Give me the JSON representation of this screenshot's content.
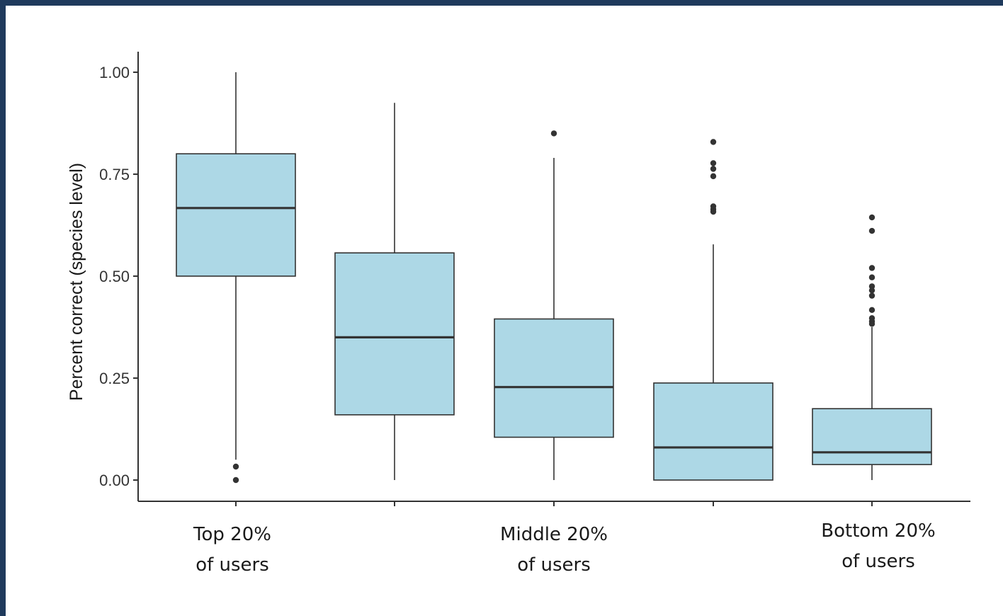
{
  "chart_data": {
    "type": "boxplot",
    "ylabel": "Percent correct (species level)",
    "ylim": [
      0,
      1.05
    ],
    "yticks": [
      "0.00",
      "0.25",
      "0.50",
      "0.75",
      "1.00"
    ],
    "categories": [
      [
        "Top 20%",
        "of users"
      ],
      [
        "",
        ""
      ],
      [
        "Middle 20%",
        "of users"
      ],
      [
        "",
        ""
      ],
      [
        "Bottom 20%",
        "of users"
      ]
    ],
    "boxes": [
      {
        "q1": 0.5,
        "median": 0.667,
        "q3": 0.8,
        "whisker_low": 0.05,
        "whisker_high": 1.0,
        "outliers": [
          0.033,
          0.0
        ]
      },
      {
        "q1": 0.16,
        "median": 0.35,
        "q3": 0.557,
        "whisker_low": 0.0,
        "whisker_high": 0.925,
        "outliers": []
      },
      {
        "q1": 0.105,
        "median": 0.228,
        "q3": 0.395,
        "whisker_low": 0.0,
        "whisker_high": 0.79,
        "outliers": [
          0.85
        ]
      },
      {
        "q1": 0.0,
        "median": 0.08,
        "q3": 0.238,
        "whisker_low": 0.0,
        "whisker_high": 0.578,
        "outliers": [
          0.829,
          0.777,
          0.763,
          0.745,
          0.671,
          0.664,
          0.658
        ]
      },
      {
        "q1": 0.038,
        "median": 0.068,
        "q3": 0.175,
        "whisker_low": 0.0,
        "whisker_high": 0.375,
        "outliers": [
          0.644,
          0.611,
          0.52,
          0.497,
          0.475,
          0.465,
          0.452,
          0.417,
          0.397,
          0.389,
          0.383
        ]
      }
    ],
    "colors": {
      "fill": "#add8e6",
      "stroke": "#333333"
    },
    "grid": false
  }
}
